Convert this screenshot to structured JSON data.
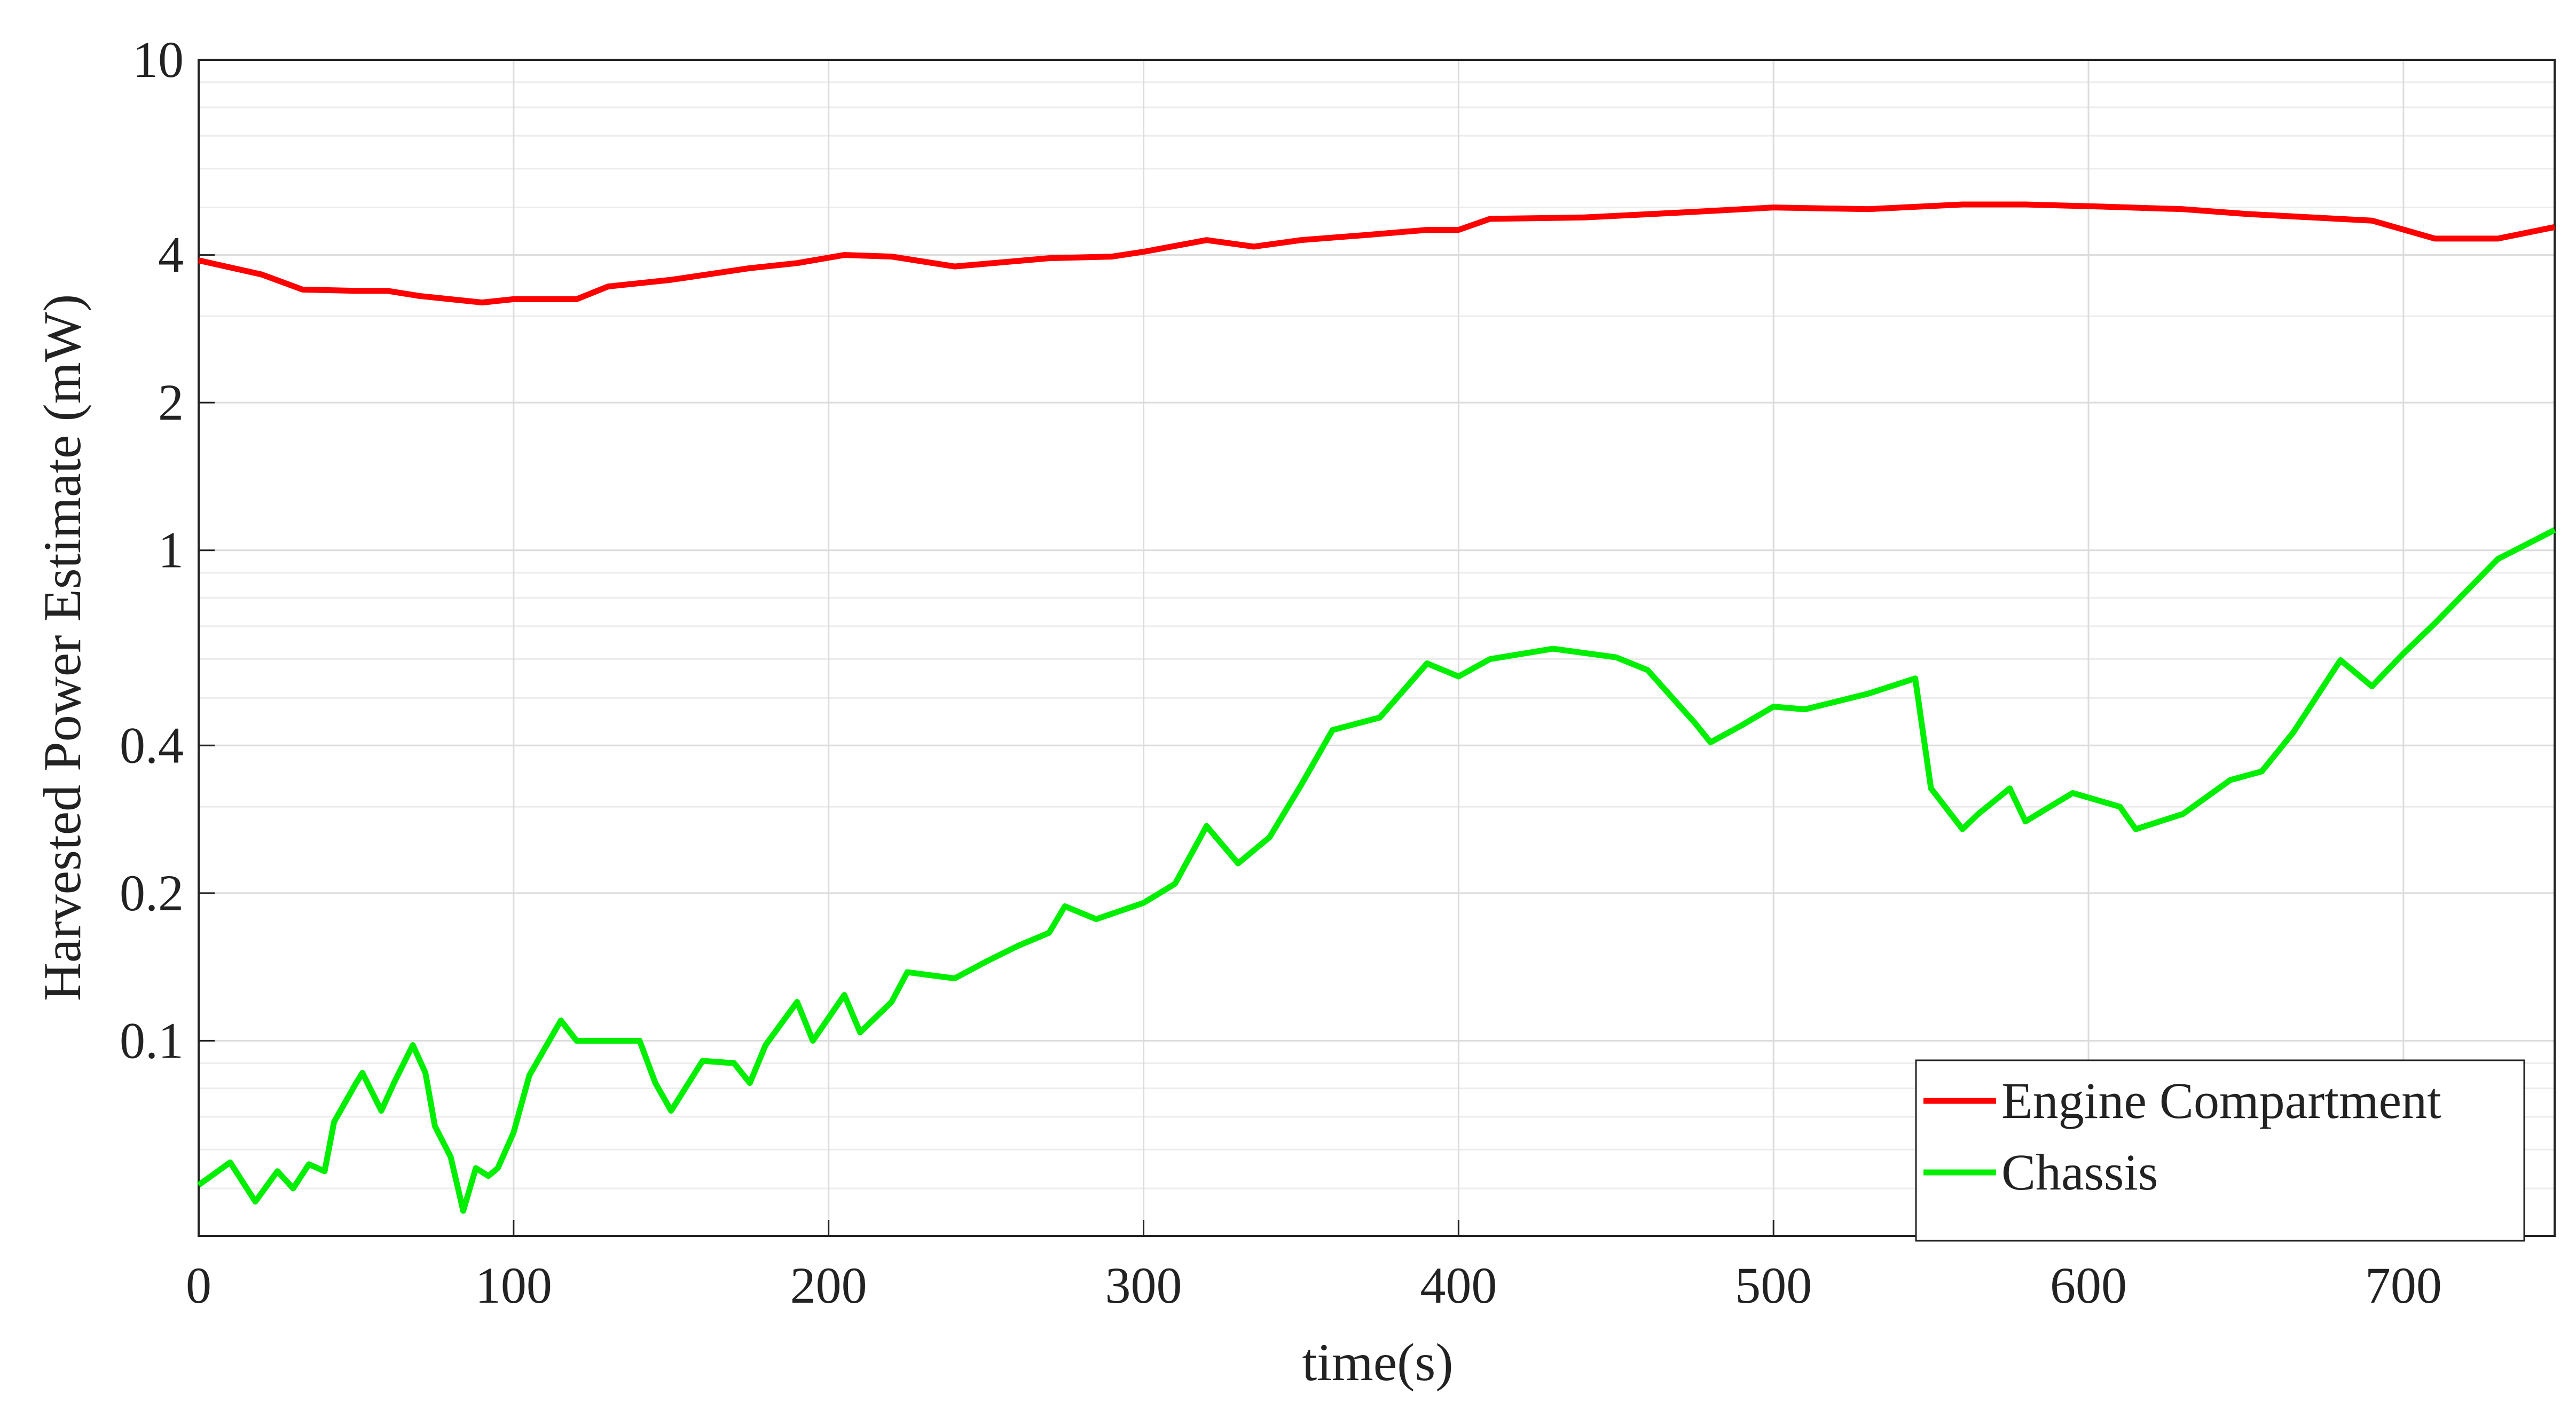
{
  "chart_data": {
    "type": "line",
    "xlabel": "time(s)",
    "ylabel": "Harvested Power Estimate (mW)",
    "xlim": [
      0,
      748
    ],
    "xticks": [
      0,
      100,
      200,
      300,
      400,
      500,
      600,
      700
    ],
    "ylim": [
      0.04,
      10
    ],
    "yticks": [
      0.1,
      0.2,
      0.4,
      1,
      2,
      4,
      10
    ],
    "yminor_ticks": [
      0.05,
      0.06,
      0.07,
      0.08,
      0.09,
      0.3,
      0.5,
      0.6,
      0.7,
      0.8,
      0.9,
      3,
      5,
      6,
      7,
      8,
      9
    ],
    "log_y": true,
    "grid": true,
    "legend": "lower right",
    "series": [
      {
        "name": "Engine Compartment",
        "color": "#ff0000",
        "x": [
          0,
          20,
          33,
          50,
          60,
          70,
          90,
          100,
          120,
          130,
          150,
          175,
          190,
          205,
          220,
          240,
          270,
          290,
          300,
          320,
          335,
          350,
          370,
          390,
          400,
          410,
          440,
          470,
          500,
          530,
          560,
          580,
          600,
          630,
          650,
          690,
          710,
          730,
          748
        ],
        "values": [
          3.9,
          3.65,
          3.4,
          3.38,
          3.38,
          3.3,
          3.2,
          3.25,
          3.25,
          3.45,
          3.56,
          3.76,
          3.85,
          4.0,
          3.97,
          3.79,
          3.94,
          3.97,
          4.06,
          4.29,
          4.16,
          4.29,
          4.39,
          4.5,
          4.5,
          4.74,
          4.77,
          4.88,
          5.0,
          4.96,
          5.07,
          5.07,
          5.03,
          4.96,
          4.85,
          4.7,
          4.32,
          4.32,
          4.56
        ]
      },
      {
        "name": "Chassis",
        "color": "#00ee00",
        "x": [
          0,
          10,
          18,
          25,
          30,
          35,
          40,
          43,
          50,
          52,
          58,
          62,
          68,
          72,
          75,
          80,
          84,
          88,
          92,
          95,
          100,
          105,
          115,
          120,
          130,
          140,
          145,
          150,
          160,
          170,
          175,
          180,
          190,
          195,
          205,
          210,
          220,
          225,
          240,
          250,
          260,
          270,
          275,
          285,
          300,
          310,
          320,
          330,
          340,
          350,
          360,
          375,
          390,
          400,
          410,
          430,
          450,
          460,
          475,
          480,
          490,
          500,
          510,
          530,
          545,
          550,
          560,
          565,
          575,
          580,
          595,
          610,
          615,
          630,
          645,
          655,
          665,
          680,
          690,
          700,
          710,
          730,
          748
        ],
        "values": [
          0.0508,
          0.0565,
          0.047,
          0.0542,
          0.05,
          0.056,
          0.0542,
          0.0683,
          0.082,
          0.086,
          0.072,
          0.082,
          0.098,
          0.086,
          0.067,
          0.058,
          0.045,
          0.055,
          0.053,
          0.055,
          0.065,
          0.085,
          0.11,
          0.1,
          0.1,
          0.1,
          0.082,
          0.072,
          0.091,
          0.09,
          0.082,
          0.098,
          0.12,
          0.1,
          0.124,
          0.104,
          0.12,
          0.138,
          0.134,
          0.145,
          0.156,
          0.166,
          0.188,
          0.177,
          0.191,
          0.209,
          0.274,
          0.23,
          0.26,
          0.332,
          0.43,
          0.456,
          0.588,
          0.553,
          0.6,
          0.63,
          0.605,
          0.57,
          0.445,
          0.406,
          0.44,
          0.48,
          0.474,
          0.51,
          0.548,
          0.327,
          0.27,
          0.29,
          0.327,
          0.28,
          0.32,
          0.3,
          0.27,
          0.29,
          0.34,
          0.354,
          0.425,
          0.597,
          0.528,
          0.616,
          0.71,
          0.96,
          1.1
        ]
      }
    ]
  }
}
